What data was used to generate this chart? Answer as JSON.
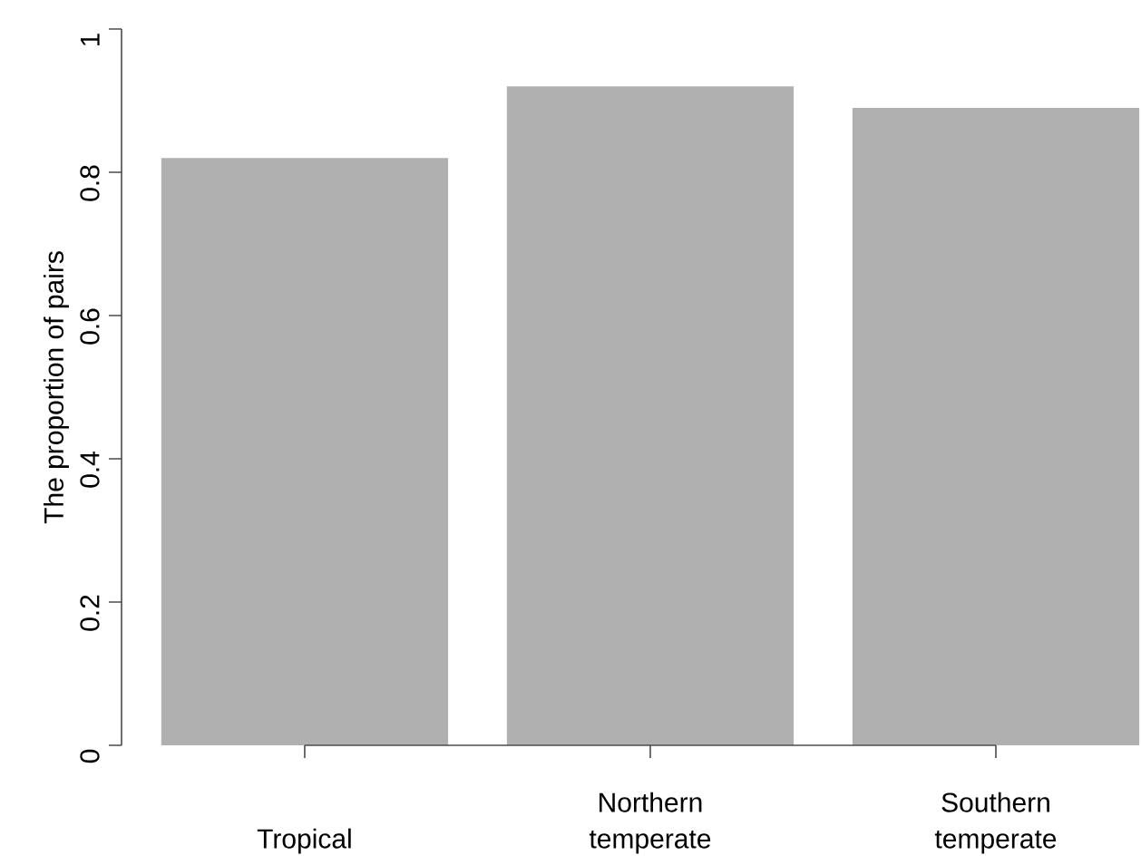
{
  "chart_data": {
    "type": "bar",
    "ylabel": "The proportion of pairs",
    "categories": [
      "Tropical",
      "Northern temperate",
      "Southern temperate"
    ],
    "values": [
      0.82,
      0.92,
      0.89
    ],
    "color": "#b0b0b0",
    "ylim": [
      0,
      1
    ],
    "yticks": [
      0,
      0.2,
      0.4,
      0.6,
      0.8,
      1
    ]
  }
}
